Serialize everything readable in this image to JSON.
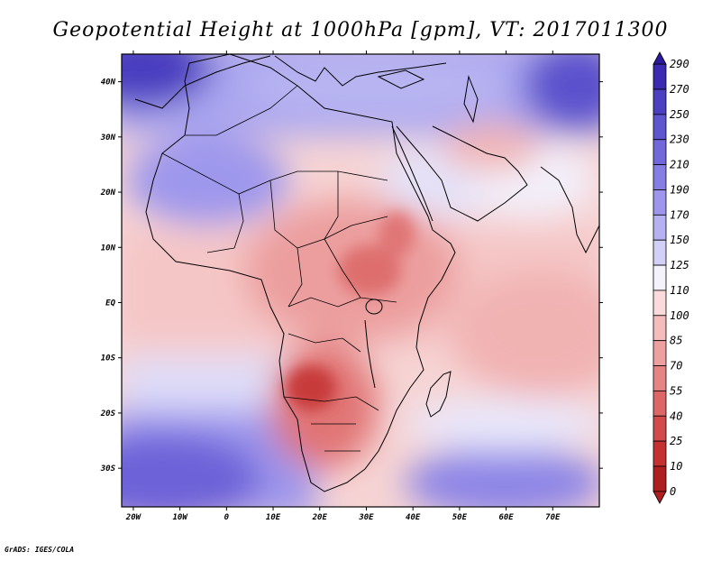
{
  "title": "Geopotential Height at 1000hPa [gpm], VT: 2017011300",
  "credit": "GrADS: IGES/COLA",
  "lon_ticks": [
    "20W",
    "10W",
    "0",
    "10E",
    "20E",
    "30E",
    "40E",
    "50E",
    "60E",
    "70E"
  ],
  "lon_values": [
    -20,
    -10,
    0,
    10,
    20,
    30,
    40,
    50,
    60,
    70
  ],
  "lat_ticks": [
    "40N",
    "30N",
    "20N",
    "10N",
    "EQ",
    "10S",
    "20S",
    "30S"
  ],
  "lat_values": [
    40,
    30,
    20,
    10,
    0,
    -10,
    -20,
    -30
  ],
  "lon_range": [
    -22.5,
    80
  ],
  "lat_range": [
    -37,
    45
  ],
  "colorbar": {
    "labels": [
      "290",
      "270",
      "250",
      "230",
      "210",
      "190",
      "170",
      "150",
      "125",
      "110",
      "100",
      "85",
      "70",
      "55",
      "40",
      "25",
      "10",
      "0"
    ],
    "colors": [
      "#2c1a9e",
      "#3a2bb0",
      "#4b3fc2",
      "#5e55d0",
      "#7268dc",
      "#877ee5",
      "#9d96ec",
      "#b6b2f2",
      "#d2d0f7",
      "#f4f3fb",
      "#fadada",
      "#f5bcbc",
      "#eea0a0",
      "#e68383",
      "#dd6767",
      "#d24a4a",
      "#c53030",
      "#b01f1f"
    ]
  }
}
